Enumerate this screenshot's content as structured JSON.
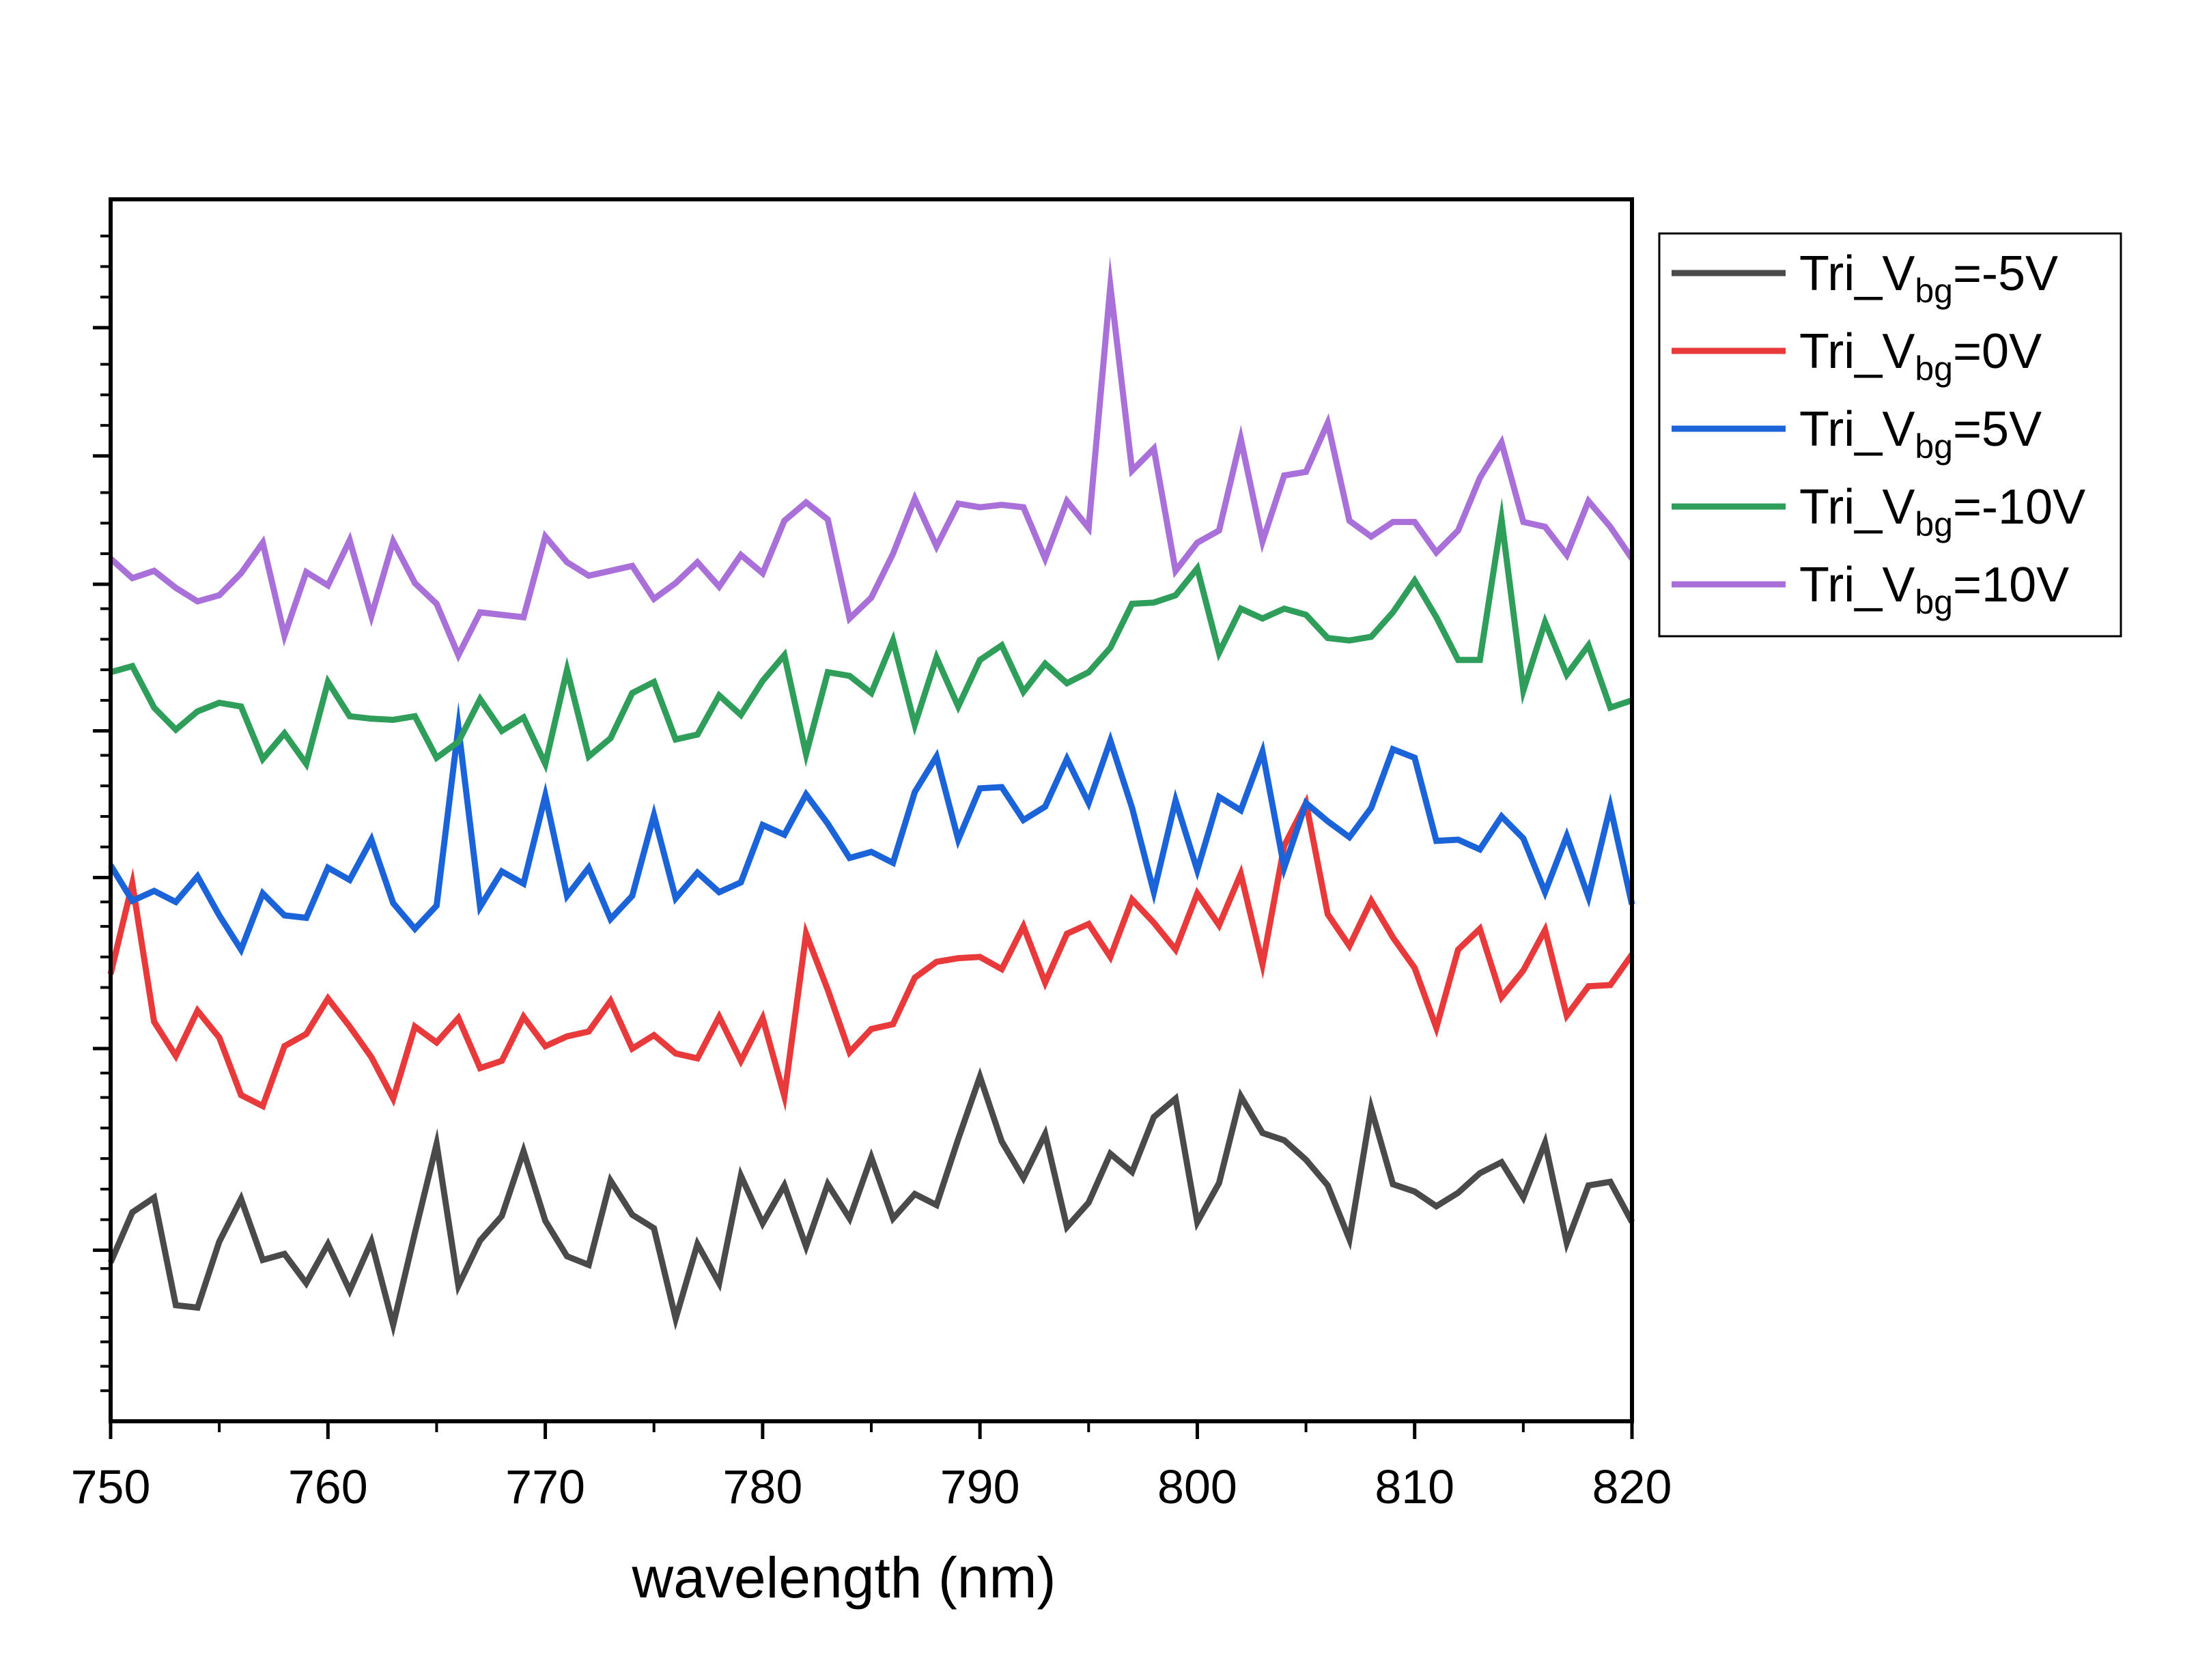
{
  "chart_data": {
    "type": "line",
    "xlabel": "wavelength (nm)",
    "ylabel": "",
    "xlim": [
      750,
      820
    ],
    "ylim": [
      0,
      100
    ],
    "y_tick_labels_shown": false,
    "x_ticks": [
      750,
      760,
      770,
      780,
      790,
      800,
      810,
      820
    ],
    "x_tick_labels": [
      "750",
      "760",
      "770",
      "780",
      "790",
      "800",
      "810",
      "820"
    ],
    "grid": false,
    "legend_position": "outside-right",
    "x": [
      750,
      751,
      752,
      753,
      754,
      755,
      756,
      757,
      758,
      759,
      760,
      761,
      762,
      763,
      764,
      765,
      766,
      767,
      768,
      769,
      770,
      771,
      772,
      773,
      774,
      775,
      776,
      777,
      778,
      779,
      780,
      781,
      782,
      783,
      784,
      785,
      786,
      787,
      788,
      789,
      790,
      791,
      792,
      793,
      794,
      795,
      796,
      797,
      798,
      799,
      800,
      801,
      802,
      803,
      804,
      805,
      806,
      807,
      808,
      809,
      810,
      811,
      812,
      813,
      814,
      815,
      816,
      817,
      818,
      819,
      820
    ],
    "series": [
      {
        "name": "Tri_Vbg=-5V",
        "legend_prefix": "Tri_V",
        "legend_sub": "bg",
        "legend_suffix": "=-5V",
        "color": "#4a4a4a",
        "values": [
          13.0,
          17.1,
          18.3,
          9.5,
          9.3,
          14.7,
          18.2,
          13.2,
          13.7,
          11.3,
          14.5,
          10.7,
          14.7,
          7.9,
          15.4,
          22.7,
          11.1,
          14.8,
          16.8,
          22.1,
          16.4,
          13.5,
          12.8,
          19.7,
          16.9,
          15.8,
          8.4,
          14.5,
          11.3,
          20.1,
          16.2,
          19.3,
          14.3,
          19.4,
          16.6,
          21.6,
          16.6,
          18.6,
          17.7,
          23.1,
          28.2,
          22.9,
          19.9,
          23.5,
          15.9,
          17.9,
          21.9,
          20.4,
          24.9,
          26.4,
          16.3,
          19.5,
          26.6,
          23.6,
          23.0,
          21.4,
          19.3,
          14.9,
          25.6,
          19.4,
          18.8,
          17.6,
          18.7,
          20.3,
          21.2,
          18.3,
          22.8,
          14.6,
          19.3,
          19.6,
          16.3
        ]
      },
      {
        "name": "Tri_Vbg=0V",
        "legend_prefix": "Tri_V",
        "legend_sub": "bg",
        "legend_suffix": "=0V",
        "color": "#e8393b",
        "values": [
          36.6,
          44.0,
          32.7,
          29.9,
          33.6,
          31.4,
          26.7,
          25.8,
          30.7,
          31.7,
          34.6,
          32.3,
          29.8,
          26.4,
          32.3,
          31.0,
          33.0,
          28.9,
          29.5,
          33.1,
          30.7,
          31.5,
          31.9,
          34.4,
          30.5,
          31.6,
          30.1,
          29.7,
          33.1,
          29.5,
          33.0,
          26.6,
          39.9,
          35.3,
          30.2,
          32.1,
          32.5,
          36.3,
          37.6,
          37.9,
          38.0,
          37.0,
          40.5,
          35.9,
          39.9,
          40.7,
          38.0,
          42.7,
          40.8,
          38.6,
          43.2,
          40.6,
          44.8,
          37.4,
          47.1,
          50.6,
          41.5,
          38.9,
          42.6,
          39.6,
          37.1,
          32.2,
          38.6,
          40.3,
          34.7,
          36.9,
          40.2,
          33.2,
          35.6,
          35.7,
          38.2
        ]
      },
      {
        "name": "Tri_Vbg=5V",
        "legend_prefix": "Tri_V",
        "legend_sub": "bg",
        "legend_suffix": "=5V",
        "color": "#1b63d8",
        "values": [
          45.5,
          42.6,
          43.4,
          42.5,
          44.6,
          41.4,
          38.6,
          43.2,
          41.4,
          41.2,
          45.3,
          44.3,
          47.6,
          42.4,
          40.3,
          42.2,
          56.8,
          42.1,
          45.0,
          44.0,
          51.2,
          43.0,
          45.3,
          41.1,
          43.0,
          49.6,
          42.8,
          44.9,
          43.3,
          44.1,
          48.8,
          48.0,
          51.3,
          48.9,
          46.1,
          46.6,
          45.7,
          51.5,
          54.4,
          47.6,
          51.8,
          51.9,
          49.2,
          50.3,
          54.2,
          50.6,
          55.7,
          50.2,
          43.3,
          50.8,
          45.1,
          51.1,
          50.0,
          54.8,
          45.3,
          50.6,
          49.1,
          47.8,
          50.2,
          55.0,
          54.3,
          47.5,
          47.6,
          46.8,
          49.5,
          47.7,
          43.3,
          47.9,
          42.9,
          50.3,
          42.3
        ]
      },
      {
        "name": "Tri_Vbg=-10V",
        "legend_prefix": "Tri_V",
        "legend_sub": "bg",
        "legend_suffix": "=-10V",
        "color": "#2e9e5a",
        "values": [
          61.3,
          61.8,
          58.4,
          56.6,
          58.1,
          58.8,
          58.5,
          54.2,
          56.3,
          53.8,
          60.5,
          57.7,
          57.5,
          57.4,
          57.7,
          54.3,
          55.6,
          59.1,
          56.5,
          57.6,
          53.8,
          61.5,
          54.4,
          55.9,
          59.6,
          60.5,
          55.8,
          56.2,
          59.4,
          57.8,
          60.6,
          62.7,
          54.6,
          61.3,
          61.0,
          59.6,
          63.9,
          57.0,
          62.5,
          58.5,
          62.3,
          63.5,
          59.7,
          62.0,
          60.4,
          61.3,
          63.3,
          66.9,
          67.0,
          67.6,
          69.8,
          62.9,
          66.5,
          65.7,
          66.5,
          66.0,
          64.1,
          63.9,
          64.2,
          66.2,
          68.8,
          65.8,
          62.3,
          62.3,
          73.8,
          59.8,
          65.4,
          61.1,
          63.5,
          58.4,
          59.0
        ]
      },
      {
        "name": "Tri_Vbg=10V",
        "legend_prefix": "Tri_V",
        "legend_sub": "bg",
        "legend_suffix": "=10V",
        "color": "#a870d8",
        "values": [
          70.6,
          69.0,
          69.6,
          68.2,
          67.1,
          67.6,
          69.4,
          71.9,
          64.3,
          69.5,
          68.4,
          72.1,
          65.9,
          72.0,
          68.6,
          66.9,
          62.7,
          66.2,
          66.0,
          65.8,
          72.4,
          70.3,
          69.2,
          69.6,
          70.0,
          67.3,
          68.6,
          70.3,
          68.3,
          70.9,
          69.4,
          73.7,
          75.2,
          73.8,
          65.7,
          67.4,
          71.0,
          75.5,
          71.6,
          75.1,
          74.8,
          75.0,
          74.8,
          70.6,
          75.3,
          73.1,
          92.9,
          77.8,
          79.6,
          69.6,
          71.9,
          72.9,
          80.4,
          72.0,
          77.4,
          77.7,
          81.7,
          73.7,
          72.4,
          73.6,
          73.6,
          71.1,
          72.9,
          77.2,
          80.1,
          73.6,
          73.2,
          70.9,
          75.3,
          73.2,
          70.6
        ]
      }
    ]
  }
}
